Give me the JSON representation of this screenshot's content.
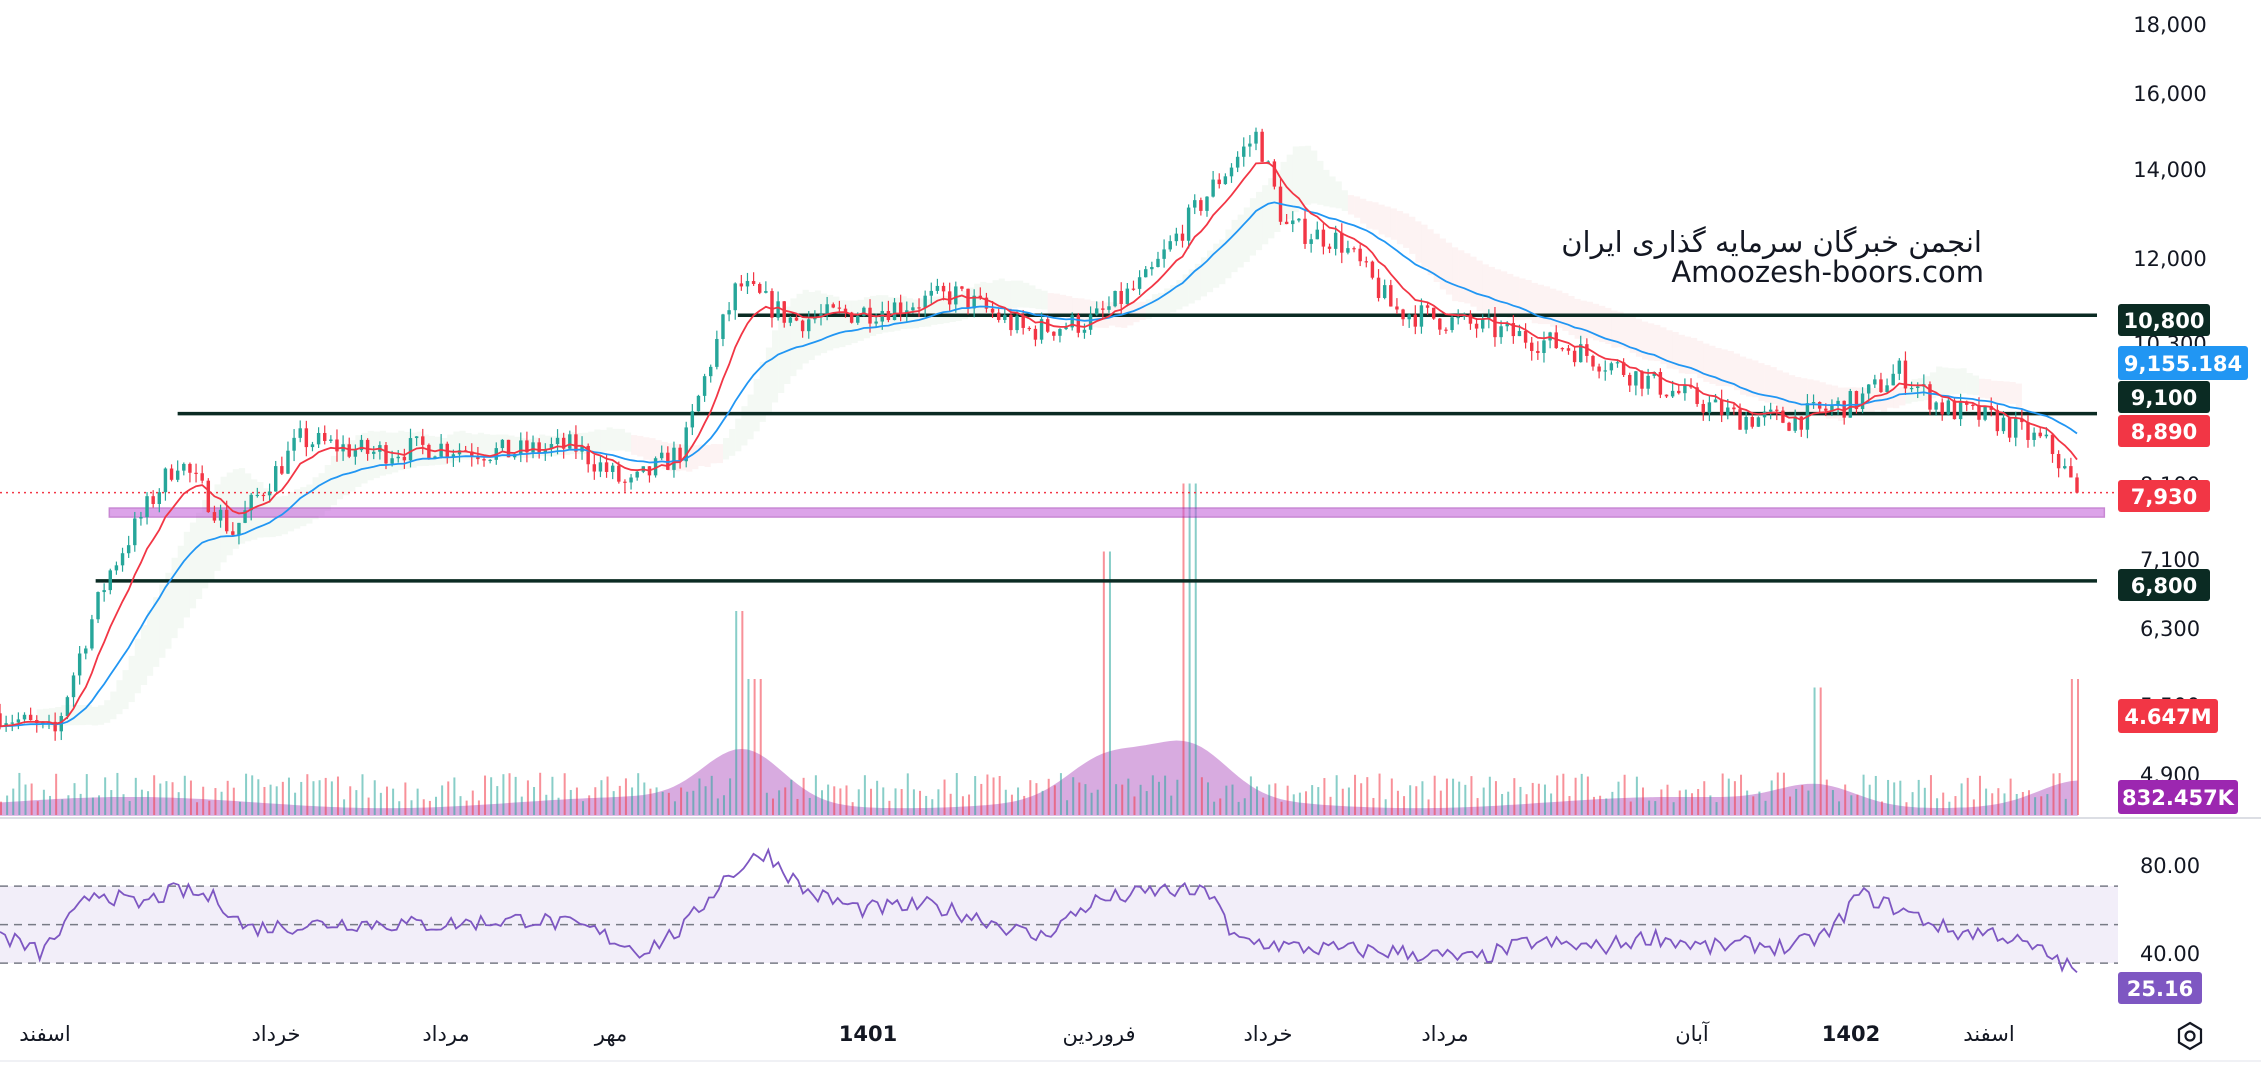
{
  "watermark": {
    "line1": "انجمن خبرگان سرمایه گذاری ایران",
    "line2": "Amoozesh-boors.com"
  },
  "colors": {
    "up": "#26a69a",
    "down": "#f23645",
    "ma_fast": "#f23645",
    "ma_slow": "#2196f3",
    "level_line": "#0b2b23",
    "rsi": "#7e57c2",
    "volume_ma": "#ab47bc",
    "zone": "#c058d8",
    "price_now": "#f23645"
  },
  "chart_data": {
    "type": "candlestick",
    "price_axis": {
      "ticks": [
        "18,000",
        "16,000",
        "14,000",
        "12,000",
        "7,100",
        "6,300",
        "4,900"
      ],
      "partial_ticks": [
        "10,300",
        "8,100",
        "5,500"
      ],
      "scale": "log",
      "range": [
        4500,
        18700
      ]
    },
    "time_axis": {
      "labels": [
        {
          "text": "اسفند",
          "year": false
        },
        {
          "text": "خرداد",
          "year": false
        },
        {
          "text": "مرداد",
          "year": false
        },
        {
          "text": "مهر",
          "year": false
        },
        {
          "text": "1401",
          "year": true
        },
        {
          "text": "فروردین",
          "year": false
        },
        {
          "text": "خرداد",
          "year": false
        },
        {
          "text": "مرداد",
          "year": false
        },
        {
          "text": "آبان",
          "year": false
        },
        {
          "text": "1402",
          "year": true
        },
        {
          "text": "اسفند",
          "year": false
        }
      ]
    },
    "price_path": [
      [
        0,
        5400
      ],
      [
        4,
        5200
      ],
      [
        8,
        6900
      ],
      [
        13,
        8400
      ],
      [
        17,
        7400
      ],
      [
        22,
        8700
      ],
      [
        27,
        8500
      ],
      [
        32,
        8600
      ],
      [
        37,
        8500
      ],
      [
        42,
        8600
      ],
      [
        46,
        8000
      ],
      [
        50,
        8550
      ],
      [
        54,
        11400
      ],
      [
        58,
        10700
      ],
      [
        64,
        10900
      ],
      [
        70,
        11200
      ],
      [
        75,
        10500
      ],
      [
        80,
        10700
      ],
      [
        84,
        11500
      ],
      [
        89,
        13600
      ],
      [
        92,
        14800
      ],
      [
        94,
        12600
      ],
      [
        98,
        12300
      ],
      [
        102,
        10900
      ],
      [
        108,
        10600
      ],
      [
        115,
        10200
      ],
      [
        122,
        9500
      ],
      [
        127,
        9050
      ],
      [
        131,
        9000
      ],
      [
        136,
        9300
      ],
      [
        139,
        9800
      ],
      [
        142,
        9200
      ],
      [
        146,
        9000
      ],
      [
        150,
        8600
      ],
      [
        152,
        7930
      ]
    ],
    "levels": [
      {
        "label": "10,800",
        "price": 10800,
        "from": 54,
        "to": 152
      },
      {
        "label": "9,100",
        "price": 9100,
        "from": 13,
        "to": 152
      },
      {
        "label": "6,800",
        "price": 6800,
        "from": 7,
        "to": 152
      }
    ],
    "support_zone": {
      "from": 8,
      "to": 154,
      "low": 7600,
      "high": 7720
    },
    "last_price": {
      "value": 7930,
      "label": "7,930"
    },
    "indicator_labels": {
      "ma_slow": "9,155.184",
      "ma_fast": "8,890",
      "volume": "4.647M",
      "volume_ma": "832.457K"
    },
    "volume_spikes": [
      {
        "t": 54,
        "v": 2.4
      },
      {
        "t": 55,
        "v": 1.6
      },
      {
        "t": 81,
        "v": 3.1
      },
      {
        "t": 87,
        "v": 3.9
      },
      {
        "t": 133,
        "v": 1.5
      },
      {
        "t": 152,
        "v": 1.6
      }
    ],
    "rsi": {
      "ticks": [
        "80.00",
        "40.00"
      ],
      "bands": [
        70,
        50,
        30
      ],
      "last": 25.16,
      "last_label": "25.16",
      "path": [
        [
          0,
          45
        ],
        [
          3,
          35
        ],
        [
          7,
          68
        ],
        [
          10,
          60
        ],
        [
          13,
          68
        ],
        [
          16,
          63
        ],
        [
          18,
          48
        ],
        [
          25,
          51
        ],
        [
          32,
          50
        ],
        [
          39,
          53
        ],
        [
          43,
          48
        ],
        [
          47,
          36
        ],
        [
          50,
          48
        ],
        [
          53,
          74
        ],
        [
          56,
          88
        ],
        [
          59,
          67
        ],
        [
          63,
          58
        ],
        [
          68,
          60
        ],
        [
          72,
          53
        ],
        [
          76,
          43
        ],
        [
          80,
          62
        ],
        [
          85,
          68
        ],
        [
          89,
          66
        ],
        [
          90,
          43
        ],
        [
          95,
          38
        ],
        [
          102,
          36
        ],
        [
          108,
          32
        ],
        [
          112,
          41
        ],
        [
          117,
          38
        ],
        [
          121,
          44
        ],
        [
          125,
          38
        ],
        [
          128,
          40
        ],
        [
          131,
          38
        ],
        [
          134,
          46
        ],
        [
          136,
          66
        ],
        [
          139,
          58
        ],
        [
          143,
          46
        ],
        [
          146,
          46
        ],
        [
          150,
          34
        ],
        [
          152,
          25
        ]
      ]
    }
  }
}
